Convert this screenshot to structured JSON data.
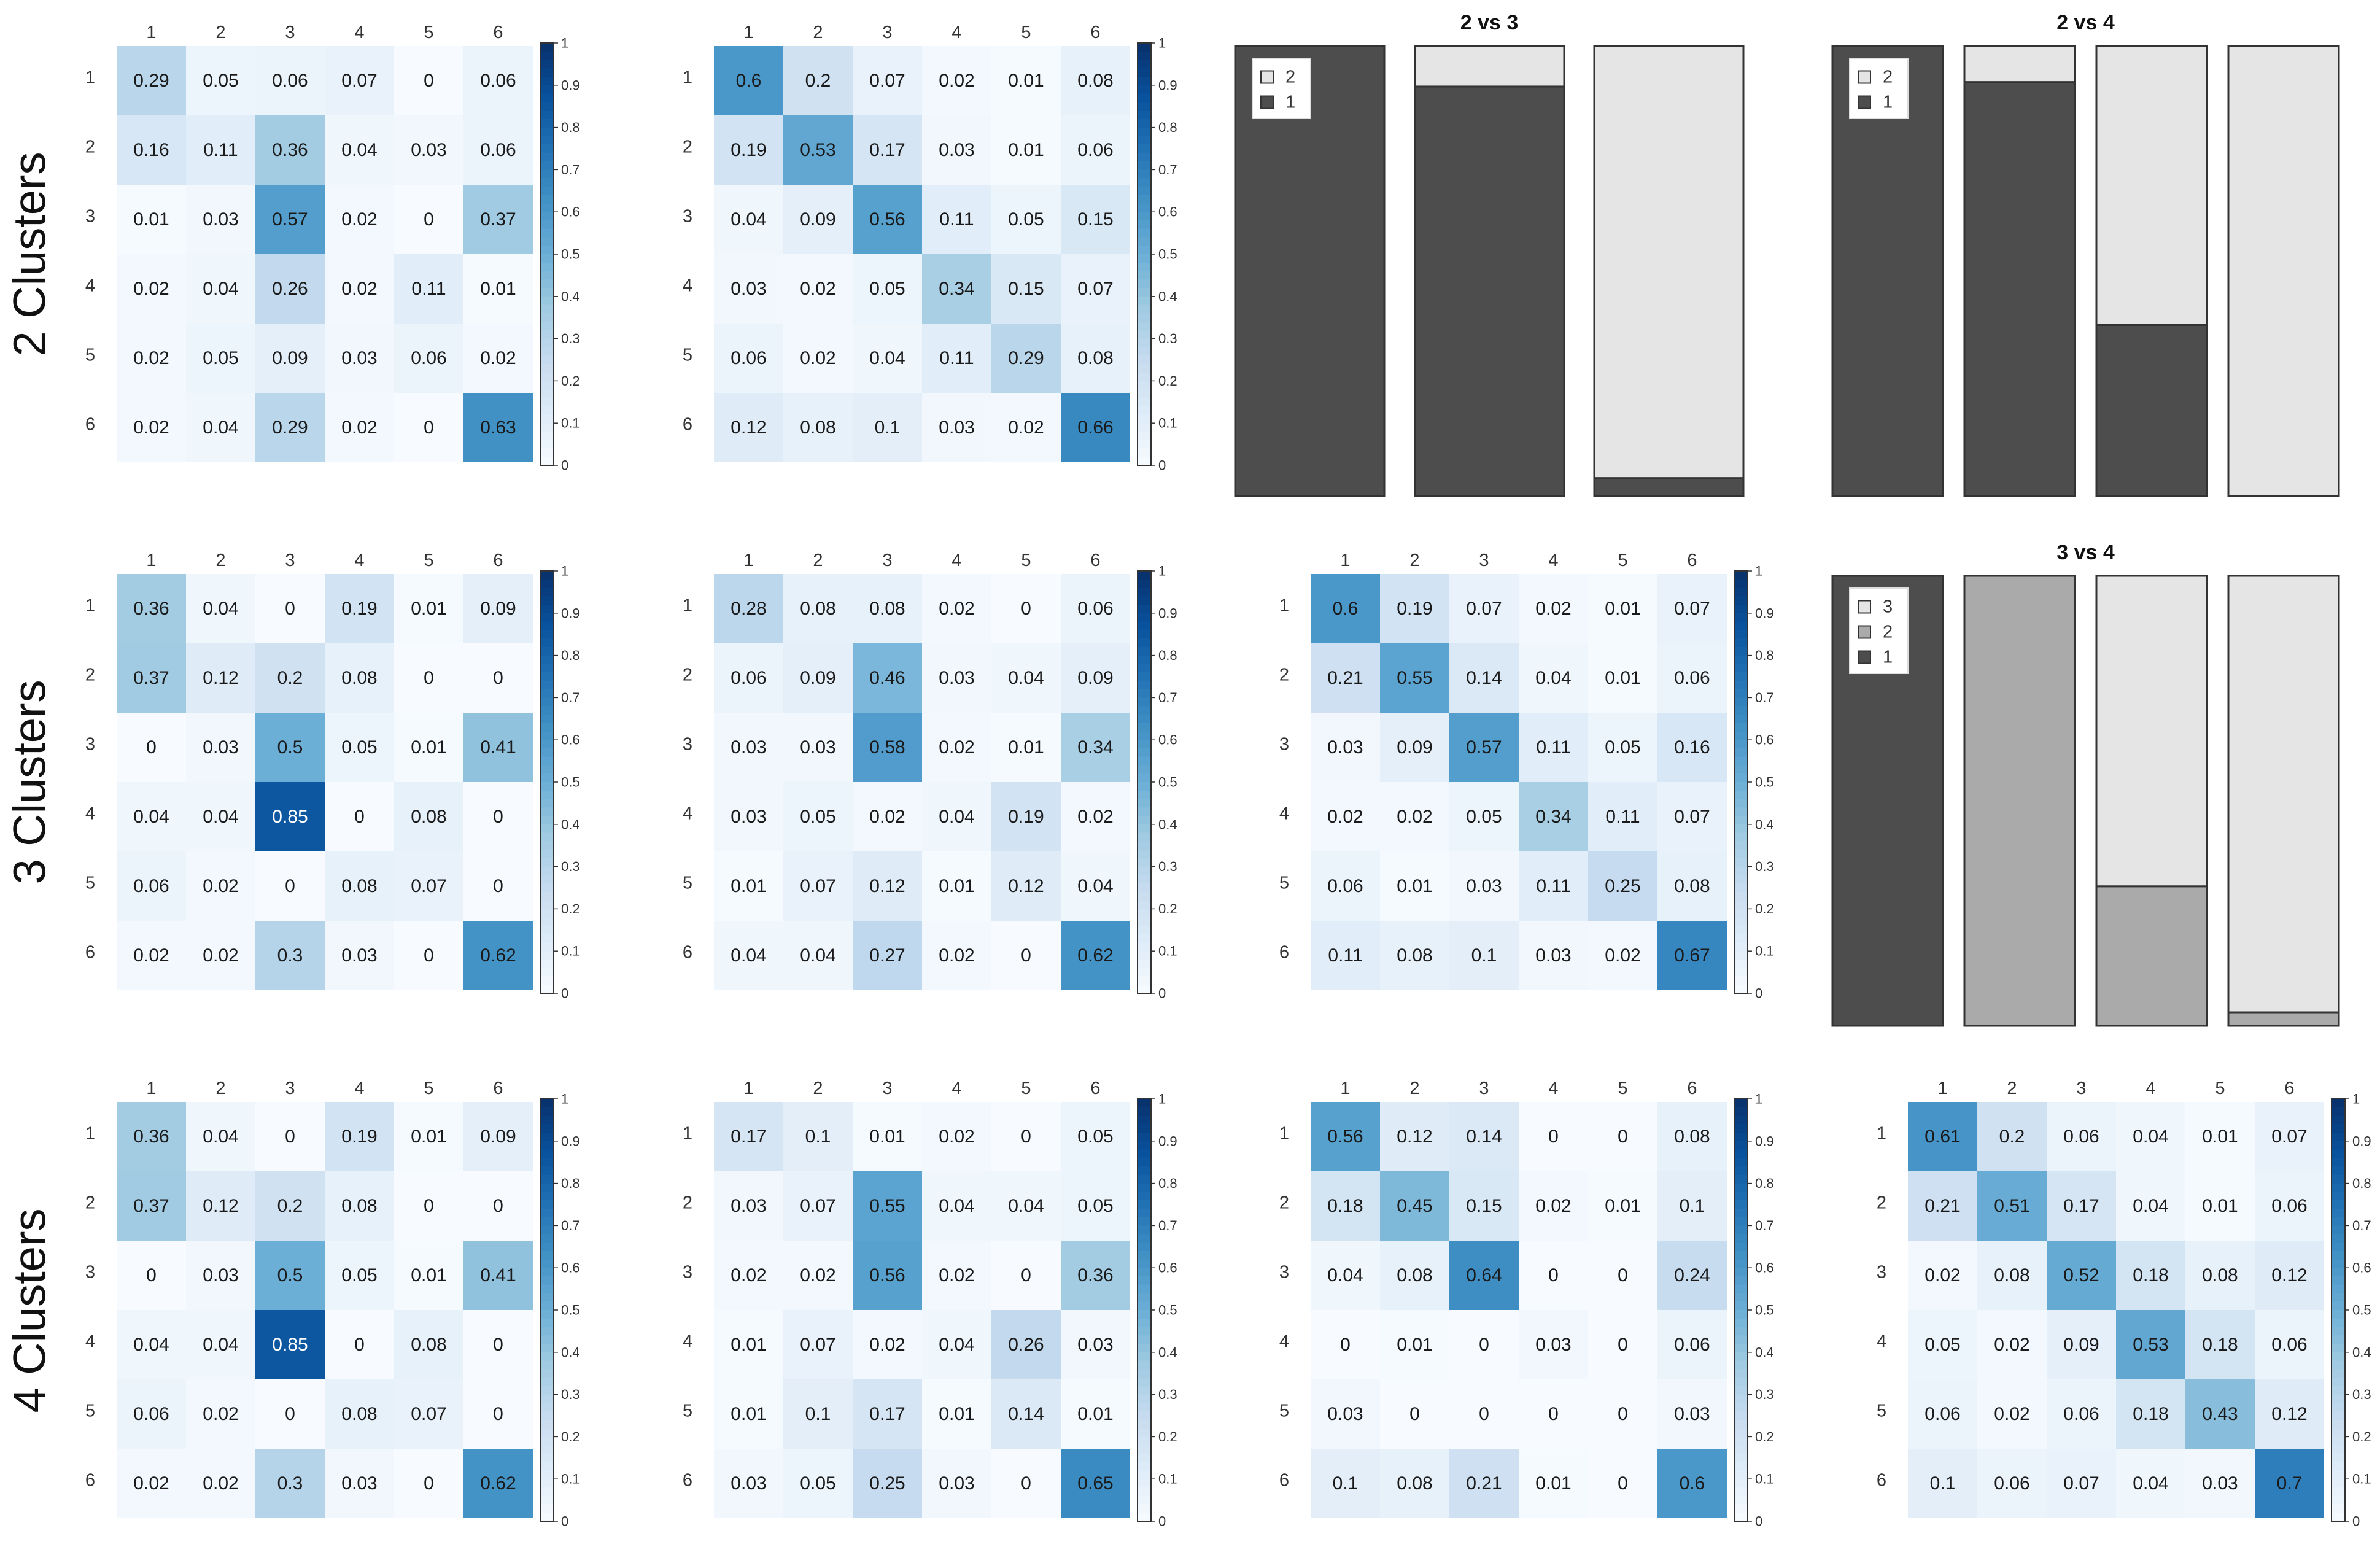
{
  "row_labels": [
    "2 Clusters",
    "3 Clusters",
    "4 Clusters"
  ],
  "colors": {
    "heat_low": "#f7fbff",
    "heat_high": "#08306b",
    "bar_dark": "#4d4d4d",
    "bar_mid": "#aaaaaa",
    "bar_light": "#e5e5e5",
    "bar_stroke": "#333333"
  },
  "chart_data": [
    {
      "id": "hm-r1-c1",
      "type": "heatmap",
      "row_labels": [
        "1",
        "2",
        "3",
        "4",
        "5",
        "6"
      ],
      "col_labels": [
        "1",
        "2",
        "3",
        "4",
        "5",
        "6"
      ],
      "values": [
        [
          0.29,
          0.05,
          0.06,
          0.07,
          0,
          0.06
        ],
        [
          0.16,
          0.11,
          0.36,
          0.04,
          0.03,
          0.06
        ],
        [
          0.01,
          0.03,
          0.57,
          0.02,
          0,
          0.37
        ],
        [
          0.02,
          0.04,
          0.26,
          0.02,
          0.11,
          0.01
        ],
        [
          0.02,
          0.05,
          0.09,
          0.03,
          0.06,
          0.02
        ],
        [
          0.02,
          0.04,
          0.29,
          0.02,
          0,
          0.63
        ]
      ],
      "colorbar_ticks": [
        "0",
        "0.1",
        "0.2",
        "0.3",
        "0.4",
        "0.5",
        "0.6",
        "0.7",
        "0.8",
        "0.9",
        "1"
      ]
    },
    {
      "id": "hm-r1-c2",
      "type": "heatmap",
      "row_labels": [
        "1",
        "2",
        "3",
        "4",
        "5",
        "6"
      ],
      "col_labels": [
        "1",
        "2",
        "3",
        "4",
        "5",
        "6"
      ],
      "values": [
        [
          0.6,
          0.2,
          0.07,
          0.02,
          0.01,
          0.08
        ],
        [
          0.19,
          0.53,
          0.17,
          0.03,
          0.01,
          0.06
        ],
        [
          0.04,
          0.09,
          0.56,
          0.11,
          0.05,
          0.15
        ],
        [
          0.03,
          0.02,
          0.05,
          0.34,
          0.15,
          0.07
        ],
        [
          0.06,
          0.02,
          0.04,
          0.11,
          0.29,
          0.08
        ],
        [
          0.12,
          0.08,
          0.1,
          0.03,
          0.02,
          0.66
        ]
      ],
      "colorbar_ticks": [
        "0",
        "0.1",
        "0.2",
        "0.3",
        "0.4",
        "0.5",
        "0.6",
        "0.7",
        "0.8",
        "0.9",
        "1"
      ]
    },
    {
      "id": "bar-2vs3",
      "type": "bar",
      "stacked": true,
      "title": "2 vs 3",
      "legend": [
        "2",
        "1"
      ],
      "legend_placement": "top-left",
      "series": [
        {
          "name": "1",
          "values": [
            1.0,
            0.91,
            0.04
          ]
        },
        {
          "name": "2",
          "values": [
            0.0,
            0.09,
            0.96
          ]
        }
      ]
    },
    {
      "id": "bar-2vs4",
      "type": "bar",
      "stacked": true,
      "title": "2 vs 4",
      "legend": [
        "2",
        "1"
      ],
      "legend_placement": "top-left",
      "series": [
        {
          "name": "1",
          "values": [
            1.0,
            0.92,
            0.38,
            0.0
          ]
        },
        {
          "name": "2",
          "values": [
            0.0,
            0.08,
            0.62,
            1.0
          ]
        }
      ]
    },
    {
      "id": "hm-r2-c1",
      "type": "heatmap",
      "row_labels": [
        "1",
        "2",
        "3",
        "4",
        "5",
        "6"
      ],
      "col_labels": [
        "1",
        "2",
        "3",
        "4",
        "5",
        "6"
      ],
      "values": [
        [
          0.36,
          0.04,
          0,
          0.19,
          0.01,
          0.09
        ],
        [
          0.37,
          0.12,
          0.2,
          0.08,
          0,
          0
        ],
        [
          0,
          0.03,
          0.5,
          0.05,
          0.01,
          0.41
        ],
        [
          0.04,
          0.04,
          0.85,
          0,
          0.08,
          0
        ],
        [
          0.06,
          0.02,
          0,
          0.08,
          0.07,
          0
        ],
        [
          0.02,
          0.02,
          0.3,
          0.03,
          0,
          0.62
        ]
      ],
      "colorbar_ticks": [
        "0",
        "0.1",
        "0.2",
        "0.3",
        "0.4",
        "0.5",
        "0.6",
        "0.7",
        "0.8",
        "0.9",
        "1"
      ]
    },
    {
      "id": "hm-r2-c2",
      "type": "heatmap",
      "row_labels": [
        "1",
        "2",
        "3",
        "4",
        "5",
        "6"
      ],
      "col_labels": [
        "1",
        "2",
        "3",
        "4",
        "5",
        "6"
      ],
      "values": [
        [
          0.28,
          0.08,
          0.08,
          0.02,
          0,
          0.06
        ],
        [
          0.06,
          0.09,
          0.46,
          0.03,
          0.04,
          0.09
        ],
        [
          0.03,
          0.03,
          0.58,
          0.02,
          0.01,
          0.34
        ],
        [
          0.03,
          0.05,
          0.02,
          0.04,
          0.19,
          0.02
        ],
        [
          0.01,
          0.07,
          0.12,
          0.01,
          0.12,
          0.04
        ],
        [
          0.04,
          0.04,
          0.27,
          0.02,
          0,
          0.62
        ]
      ],
      "colorbar_ticks": [
        "0",
        "0.1",
        "0.2",
        "0.3",
        "0.4",
        "0.5",
        "0.6",
        "0.7",
        "0.8",
        "0.9",
        "1"
      ]
    },
    {
      "id": "hm-r2-c3",
      "type": "heatmap",
      "row_labels": [
        "1",
        "2",
        "3",
        "4",
        "5",
        "6"
      ],
      "col_labels": [
        "1",
        "2",
        "3",
        "4",
        "5",
        "6"
      ],
      "values": [
        [
          0.6,
          0.19,
          0.07,
          0.02,
          0.01,
          0.07
        ],
        [
          0.21,
          0.55,
          0.14,
          0.04,
          0.01,
          0.06
        ],
        [
          0.03,
          0.09,
          0.57,
          0.11,
          0.05,
          0.16
        ],
        [
          0.02,
          0.02,
          0.05,
          0.34,
          0.11,
          0.07
        ],
        [
          0.06,
          0.01,
          0.03,
          0.11,
          0.25,
          0.08
        ],
        [
          0.11,
          0.08,
          0.1,
          0.03,
          0.02,
          0.67
        ]
      ],
      "colorbar_ticks": [
        "0",
        "0.1",
        "0.2",
        "0.3",
        "0.4",
        "0.5",
        "0.6",
        "0.7",
        "0.8",
        "0.9",
        "1"
      ]
    },
    {
      "id": "bar-3vs4",
      "type": "bar",
      "stacked": true,
      "title": "3 vs 4",
      "legend": [
        "3",
        "2",
        "1"
      ],
      "legend_placement": "top-left",
      "series": [
        {
          "name": "1",
          "values": [
            1.0,
            0.0,
            0.0,
            0.0
          ]
        },
        {
          "name": "2",
          "values": [
            0.0,
            1.0,
            0.31,
            0.03
          ]
        },
        {
          "name": "3",
          "values": [
            0.0,
            0.0,
            0.69,
            0.97
          ]
        }
      ]
    },
    {
      "id": "hm-r3-c1",
      "type": "heatmap",
      "row_labels": [
        "1",
        "2",
        "3",
        "4",
        "5",
        "6"
      ],
      "col_labels": [
        "1",
        "2",
        "3",
        "4",
        "5",
        "6"
      ],
      "values": [
        [
          0.36,
          0.04,
          0,
          0.19,
          0.01,
          0.09
        ],
        [
          0.37,
          0.12,
          0.2,
          0.08,
          0,
          0
        ],
        [
          0,
          0.03,
          0.5,
          0.05,
          0.01,
          0.41
        ],
        [
          0.04,
          0.04,
          0.85,
          0,
          0.08,
          0
        ],
        [
          0.06,
          0.02,
          0,
          0.08,
          0.07,
          0
        ],
        [
          0.02,
          0.02,
          0.3,
          0.03,
          0,
          0.62
        ]
      ],
      "colorbar_ticks": [
        "0",
        "0.1",
        "0.2",
        "0.3",
        "0.4",
        "0.5",
        "0.6",
        "0.7",
        "0.8",
        "0.9",
        "1"
      ]
    },
    {
      "id": "hm-r3-c2",
      "type": "heatmap",
      "row_labels": [
        "1",
        "2",
        "3",
        "4",
        "5",
        "6"
      ],
      "col_labels": [
        "1",
        "2",
        "3",
        "4",
        "5",
        "6"
      ],
      "values": [
        [
          0.17,
          0.1,
          0.01,
          0.02,
          0,
          0.05
        ],
        [
          0.03,
          0.07,
          0.55,
          0.04,
          0.04,
          0.05
        ],
        [
          0.02,
          0.02,
          0.56,
          0.02,
          0,
          0.36
        ],
        [
          0.01,
          0.07,
          0.02,
          0.04,
          0.26,
          0.03
        ],
        [
          0.01,
          0.1,
          0.17,
          0.01,
          0.14,
          0.01
        ],
        [
          0.03,
          0.05,
          0.25,
          0.03,
          0,
          0.65
        ]
      ],
      "colorbar_ticks": [
        "0",
        "0.1",
        "0.2",
        "0.3",
        "0.4",
        "0.5",
        "0.6",
        "0.7",
        "0.8",
        "0.9",
        "1"
      ]
    },
    {
      "id": "hm-r3-c3",
      "type": "heatmap",
      "row_labels": [
        "1",
        "2",
        "3",
        "4",
        "5",
        "6"
      ],
      "col_labels": [
        "1",
        "2",
        "3",
        "4",
        "5",
        "6"
      ],
      "values": [
        [
          0.56,
          0.12,
          0.14,
          0,
          0,
          0.08
        ],
        [
          0.18,
          0.45,
          0.15,
          0.02,
          0.01,
          0.1
        ],
        [
          0.04,
          0.08,
          0.64,
          0,
          0,
          0.24
        ],
        [
          0,
          0.01,
          0,
          0.03,
          0,
          0.06
        ],
        [
          0.03,
          0,
          0,
          0,
          0,
          0.03
        ],
        [
          0.1,
          0.08,
          0.21,
          0.01,
          0,
          0.6
        ]
      ],
      "colorbar_ticks": [
        "0",
        "0.1",
        "0.2",
        "0.3",
        "0.4",
        "0.5",
        "0.6",
        "0.7",
        "0.8",
        "0.9",
        "1"
      ]
    },
    {
      "id": "hm-r3-c4",
      "type": "heatmap",
      "row_labels": [
        "1",
        "2",
        "3",
        "4",
        "5",
        "6"
      ],
      "col_labels": [
        "1",
        "2",
        "3",
        "4",
        "5",
        "6"
      ],
      "values": [
        [
          0.61,
          0.2,
          0.06,
          0.04,
          0.01,
          0.07
        ],
        [
          0.21,
          0.51,
          0.17,
          0.04,
          0.01,
          0.06
        ],
        [
          0.02,
          0.08,
          0.52,
          0.18,
          0.08,
          0.12
        ],
        [
          0.05,
          0.02,
          0.09,
          0.53,
          0.18,
          0.06
        ],
        [
          0.06,
          0.02,
          0.06,
          0.18,
          0.43,
          0.12
        ],
        [
          0.1,
          0.06,
          0.07,
          0.04,
          0.03,
          0.7
        ]
      ],
      "colorbar_ticks": [
        "0",
        "0.1",
        "0.2",
        "0.3",
        "0.4",
        "0.5",
        "0.6",
        "0.7",
        "0.8",
        "0.9",
        "1"
      ]
    }
  ]
}
